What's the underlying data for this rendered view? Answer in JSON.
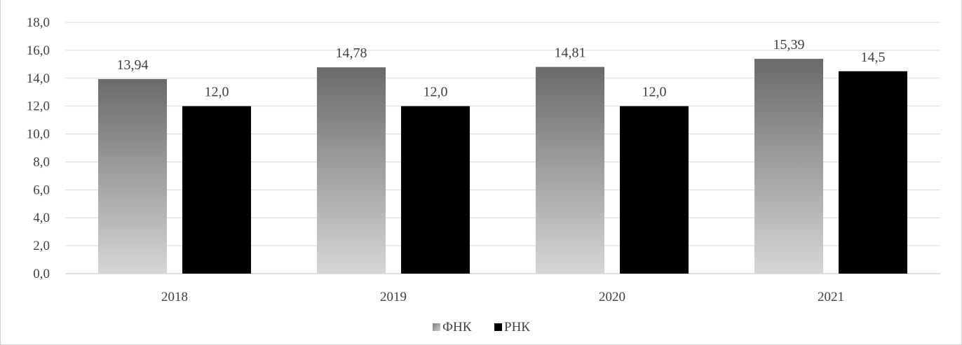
{
  "chart_data": {
    "type": "bar",
    "title": "",
    "xlabel": "",
    "ylabel": "",
    "categories": [
      "2018",
      "2019",
      "2020",
      "2021"
    ],
    "series": [
      {
        "name": "ФНК",
        "values": [
          13.94,
          14.78,
          14.81,
          15.39
        ],
        "value_labels": [
          "13,94",
          "14,78",
          "14,81",
          "15,39"
        ],
        "color": "#707070",
        "fill_style": "vertical-gradient-dark-top"
      },
      {
        "name": "РНК",
        "values": [
          12.0,
          12.0,
          12.0,
          14.5
        ],
        "value_labels": [
          "12,0",
          "12,0",
          "12,0",
          "14,5"
        ],
        "color": "#000000",
        "fill_style": "solid"
      }
    ],
    "ylim": [
      0,
      18
    ],
    "yticks": [
      0,
      2,
      4,
      6,
      8,
      10,
      12,
      14,
      16,
      18
    ],
    "ytick_labels": [
      "0,0",
      "2,0",
      "4,0",
      "6,0",
      "8,0",
      "10,0",
      "12,0",
      "14,0",
      "16,0",
      "18,0"
    ],
    "grid": true,
    "legend_position": "bottom-center"
  }
}
